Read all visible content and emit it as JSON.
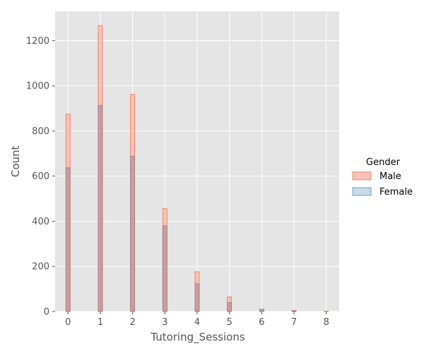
{
  "chart_data": {
    "type": "bar",
    "xlabel": "Tutoring_Sessions",
    "ylabel": "Count",
    "x": [
      0,
      1,
      2,
      3,
      4,
      5,
      6,
      7,
      8
    ],
    "x_ticks": [
      0,
      1,
      2,
      3,
      4,
      5,
      6,
      7,
      8
    ],
    "y_ticks": [
      0,
      200,
      400,
      600,
      800,
      1000,
      1200
    ],
    "xlim": [
      -0.4,
      8.4
    ],
    "ylim": [
      0,
      1330
    ],
    "grid": true,
    "legend": {
      "title": "Gender",
      "placement": "right"
    },
    "series": [
      {
        "name": "Male",
        "values": [
          875,
          1267,
          962,
          456,
          176,
          65,
          10,
          5,
          2
        ],
        "fill": "#f7c3b9",
        "stroke": "#e8735a"
      },
      {
        "name": "Female",
        "values": [
          637,
          913,
          688,
          380,
          123,
          40,
          10,
          2,
          0
        ],
        "fill": "#c9dbe8",
        "stroke": "#5a8fb8"
      }
    ],
    "overlap_fill": "#cf9b9c",
    "overlap_stroke": "#8e7d86"
  }
}
